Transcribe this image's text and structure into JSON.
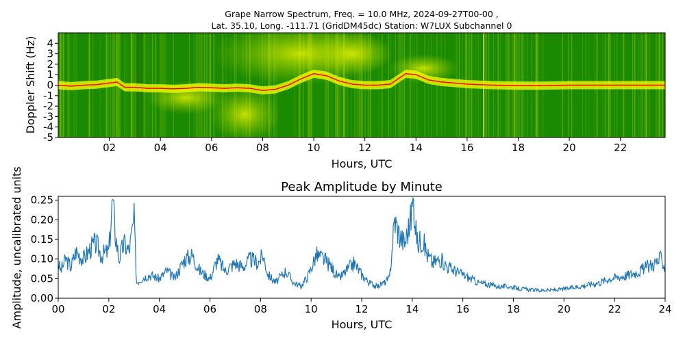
{
  "figure": {
    "title_line1": "Grape Narrow Spectrum, Freq. = 10.0 MHz, 2024-09-27T00-00 ,",
    "title_line2": "Lat.  35.10, Long. -111.71 (GridDM45dc) Station: W7LUX Subchannel 0"
  },
  "chart_data": [
    {
      "type": "heatmap",
      "title": "Grape Narrow Spectrum, Freq. = 10.0 MHz, 2024-09-27T00-00 , Lat.  35.10, Long. -111.71 (GridDM45dc) Station: W7LUX Subchannel 0",
      "xlabel": "Hours, UTC",
      "ylabel": "Doppler Shift (Hz)",
      "xlim": [
        0,
        23.75
      ],
      "ylim": [
        -5,
        5
      ],
      "x_ticks": [
        "02",
        "04",
        "06",
        "08",
        "10",
        "12",
        "14",
        "16",
        "18",
        "20",
        "22"
      ],
      "x_tick_values": [
        2,
        4,
        6,
        8,
        10,
        12,
        14,
        16,
        18,
        20,
        22
      ],
      "y_ticks": [
        "4",
        "3",
        "2",
        "1",
        "0",
        "-1",
        "-2",
        "-3",
        "-4",
        "-5"
      ],
      "y_tick_values": [
        4,
        3,
        2,
        1,
        0,
        -1,
        -2,
        -3,
        -4,
        -5
      ],
      "colors": {
        "background": "#1a8a00",
        "mid": "#9acd00",
        "high": "#ffff00",
        "peak": "#ff0000"
      },
      "peak_doppler_trace": {
        "x": [
          0,
          0.5,
          1,
          1.5,
          2,
          2.3,
          2.6,
          3,
          3.5,
          4,
          4.5,
          5,
          5.5,
          6,
          6.5,
          7,
          7.5,
          8,
          8.5,
          9,
          9.5,
          10,
          10.5,
          11,
          11.5,
          12,
          12.5,
          13,
          13.3,
          13.6,
          14,
          14.5,
          15,
          15.5,
          16,
          17,
          18,
          19,
          20,
          21,
          22,
          23,
          23.75
        ],
        "y": [
          0,
          -0.1,
          0,
          0.05,
          0.2,
          0.3,
          -0.2,
          -0.2,
          -0.3,
          -0.3,
          -0.35,
          -0.3,
          -0.2,
          -0.25,
          -0.3,
          -0.25,
          -0.3,
          -0.5,
          -0.4,
          0,
          0.6,
          1.1,
          0.9,
          0.4,
          0.1,
          0,
          0,
          0.1,
          0.6,
          1.1,
          1.0,
          0.5,
          0.3,
          0.2,
          0.1,
          0,
          -0.05,
          -0.05,
          0,
          0,
          0,
          0,
          0
        ]
      }
    },
    {
      "type": "line",
      "title": "Peak Amplitude by Minute",
      "xlabel": "Hours, UTC",
      "ylabel": "Amplitude, uncalibrated units",
      "xlim": [
        0,
        24
      ],
      "ylim": [
        0,
        0.26
      ],
      "grid": false,
      "x_ticks": [
        "00",
        "02",
        "04",
        "06",
        "08",
        "10",
        "12",
        "14",
        "16",
        "18",
        "20",
        "22",
        "24"
      ],
      "y_ticks": [
        "0.00",
        "0.05",
        "0.10",
        "0.15",
        "0.20",
        "0.25"
      ],
      "y_tick_values": [
        0,
        0.05,
        0.1,
        0.15,
        0.2,
        0.25
      ],
      "color": "#1f77b4",
      "x": [
        0,
        0.1,
        0.3,
        0.5,
        0.7,
        1,
        1.3,
        1.5,
        1.7,
        2,
        2.15,
        2.25,
        2.4,
        2.6,
        2.8,
        3.0,
        3.1,
        3.3,
        3.6,
        4,
        4.3,
        4.6,
        5,
        5.3,
        5.6,
        6,
        6.3,
        6.6,
        7,
        7.3,
        7.6,
        7.9,
        8.1,
        8.3,
        8.6,
        9,
        9.3,
        9.6,
        9.9,
        10.2,
        10.5,
        10.8,
        11.1,
        11.4,
        11.7,
        12,
        12.3,
        12.6,
        12.9,
        13.1,
        13.3,
        13.5,
        13.7,
        13.9,
        14.05,
        14.2,
        14.4,
        14.6,
        14.8,
        15.1,
        15.4,
        15.7,
        16,
        16.3,
        16.6,
        17,
        17.4,
        17.8,
        18.2,
        18.6,
        19,
        19.4,
        19.8,
        20.2,
        20.6,
        21,
        21.4,
        21.8,
        22.2,
        22.6,
        23,
        23.3,
        23.6,
        23.85,
        24
      ],
      "y": [
        0.09,
        0.07,
        0.1,
        0.08,
        0.12,
        0.1,
        0.13,
        0.14,
        0.11,
        0.12,
        0.25,
        0.17,
        0.1,
        0.14,
        0.12,
        0.2,
        0.04,
        0.05,
        0.06,
        0.05,
        0.07,
        0.05,
        0.1,
        0.11,
        0.07,
        0.05,
        0.1,
        0.07,
        0.09,
        0.08,
        0.1,
        0.09,
        0.11,
        0.06,
        0.04,
        0.07,
        0.04,
        0.03,
        0.06,
        0.11,
        0.1,
        0.08,
        0.05,
        0.07,
        0.09,
        0.06,
        0.04,
        0.03,
        0.04,
        0.05,
        0.2,
        0.16,
        0.14,
        0.19,
        0.25,
        0.14,
        0.15,
        0.11,
        0.09,
        0.1,
        0.08,
        0.07,
        0.06,
        0.05,
        0.04,
        0.035,
        0.03,
        0.03,
        0.025,
        0.022,
        0.02,
        0.02,
        0.022,
        0.025,
        0.03,
        0.035,
        0.04,
        0.05,
        0.055,
        0.06,
        0.07,
        0.08,
        0.09,
        0.1,
        0.08
      ]
    }
  ]
}
